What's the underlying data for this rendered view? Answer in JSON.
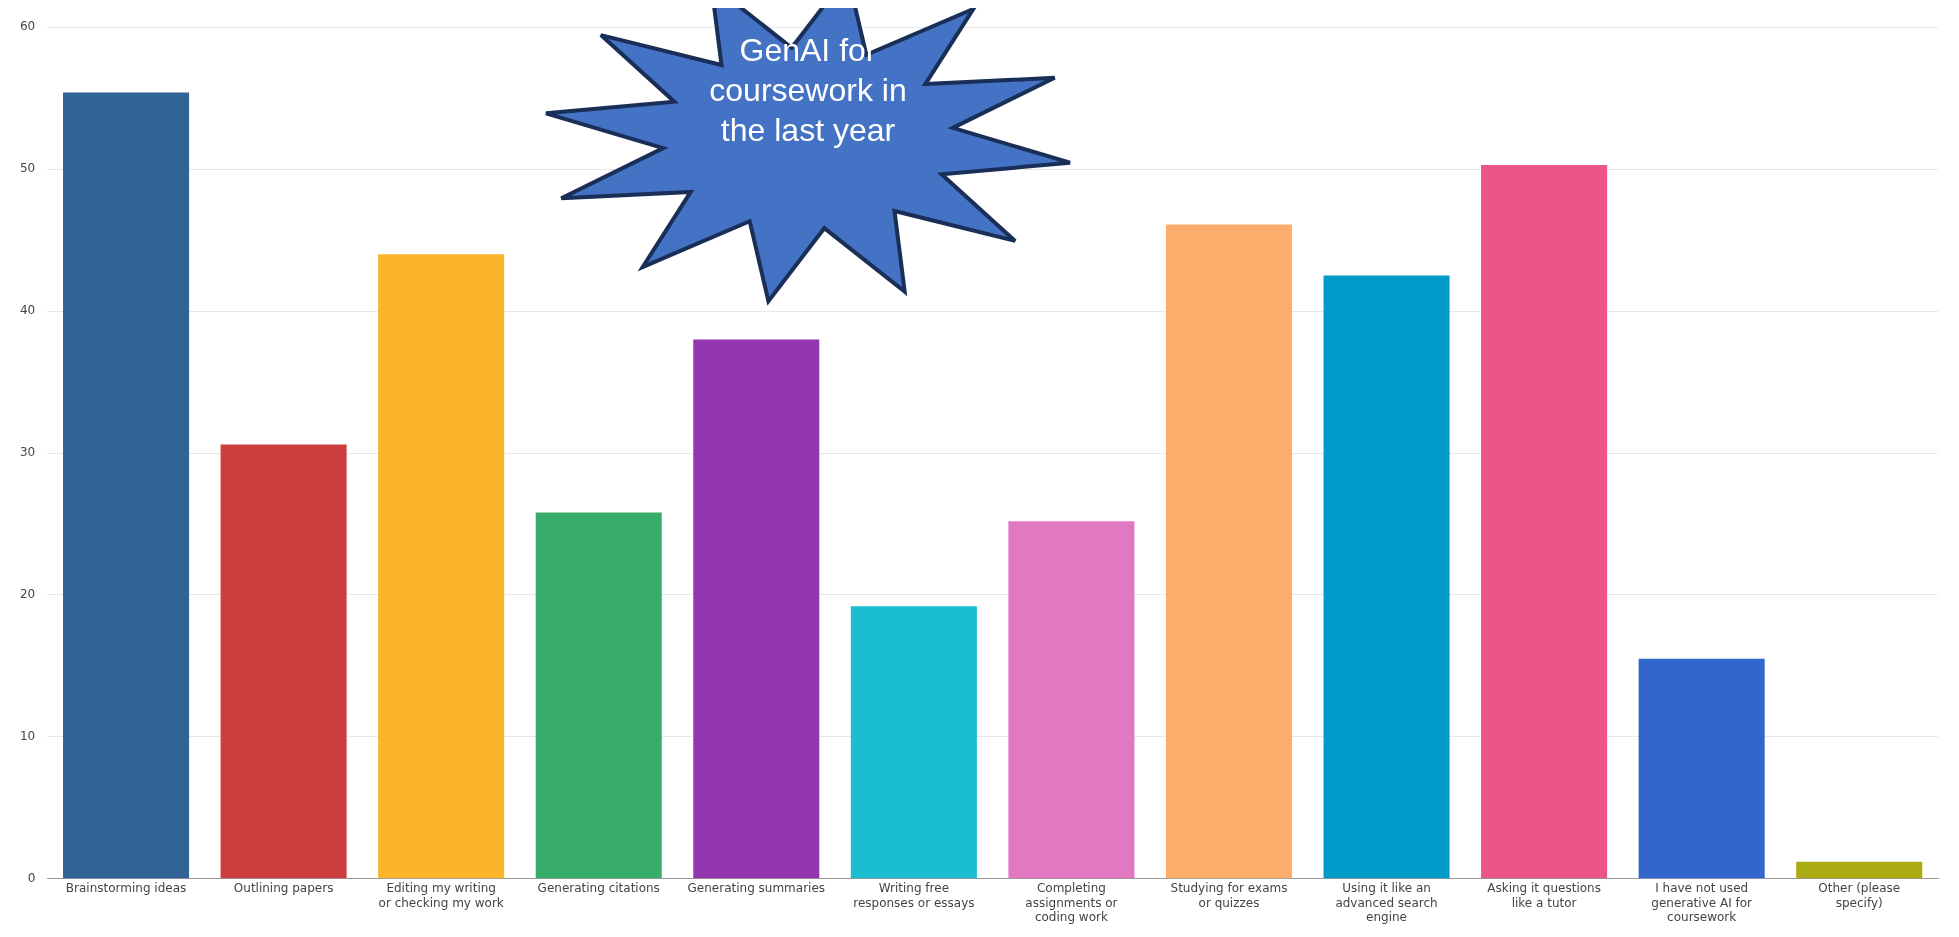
{
  "chart_data": {
    "type": "bar",
    "categories": [
      "Brainstorming ideas",
      "Outlining papers",
      "Editing my writing or checking my work",
      "Generating citations",
      "Generating summaries",
      "Writing free responses or essays",
      "Completing assignments or coding work",
      "Studying for exams or quizzes",
      "Using it like an advanced search engine",
      "Asking it questions like a tutor",
      "I have not used generative AI for coursework",
      "Other (please specify)"
    ],
    "values": [
      55.4,
      30.6,
      44.0,
      25.8,
      38.0,
      19.2,
      25.2,
      46.1,
      42.5,
      50.3,
      15.5,
      1.2
    ],
    "colors": [
      "#316395",
      "#cc3e3e",
      "#fbb52a",
      "#38ad6b",
      "#9337b0",
      "#1bbdd0",
      "#e178c2",
      "#fcad6c",
      "#009bc8",
      "#eb5686",
      "#3366cc",
      "#aaaa11"
    ],
    "ylim": [
      0,
      60
    ],
    "yticks": [
      0,
      10,
      20,
      30,
      40,
      50,
      60
    ],
    "grid": "y",
    "legend": false,
    "annotations": [
      "GenAI for coursework in the last year"
    ]
  }
}
